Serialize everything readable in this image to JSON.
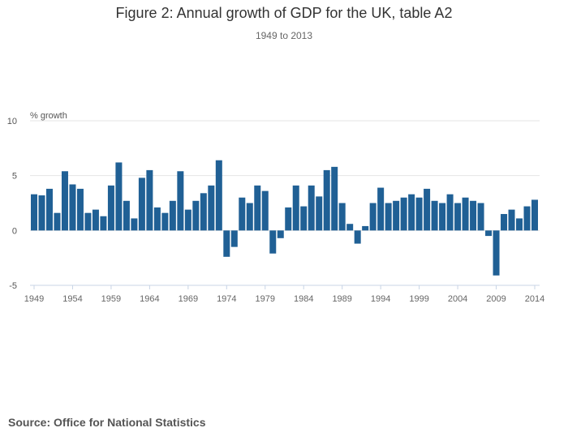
{
  "chart_data": {
    "type": "bar",
    "title": "Figure 2: Annual growth of GDP for the UK, table A2",
    "subtitle": "1949 to 2013",
    "ylabel": "% growth",
    "xlabel": "",
    "ylim": [
      -5,
      10
    ],
    "yticks": [
      10,
      5,
      0,
      -5
    ],
    "xticks": [
      "1949",
      "1954",
      "1959",
      "1964",
      "1969",
      "1974",
      "1979",
      "1984",
      "1989",
      "1994",
      "1999",
      "2004",
      "2009",
      "2014"
    ],
    "grid": true,
    "color": "#206095",
    "categories": [
      "1949",
      "1950",
      "1951",
      "1952",
      "1953",
      "1954",
      "1955",
      "1956",
      "1957",
      "1958",
      "1959",
      "1960",
      "1961",
      "1962",
      "1963",
      "1964",
      "1965",
      "1966",
      "1967",
      "1968",
      "1969",
      "1970",
      "1971",
      "1972",
      "1973",
      "1974",
      "1975",
      "1976",
      "1977",
      "1978",
      "1979",
      "1980",
      "1981",
      "1982",
      "1983",
      "1984",
      "1985",
      "1986",
      "1987",
      "1988",
      "1989",
      "1990",
      "1991",
      "1992",
      "1993",
      "1994",
      "1995",
      "1996",
      "1997",
      "1998",
      "1999",
      "2000",
      "2001",
      "2002",
      "2003",
      "2004",
      "2005",
      "2006",
      "2007",
      "2008",
      "2009",
      "2010",
      "2011",
      "2012",
      "2013",
      "2014"
    ],
    "values": [
      3.3,
      3.2,
      3.8,
      1.6,
      5.4,
      4.2,
      3.8,
      1.6,
      1.9,
      1.3,
      4.1,
      6.2,
      2.7,
      1.1,
      4.8,
      5.5,
      2.1,
      1.6,
      2.7,
      5.4,
      1.9,
      2.7,
      3.4,
      4.1,
      6.4,
      -2.4,
      -1.5,
      3.0,
      2.5,
      4.1,
      3.6,
      -2.1,
      -0.7,
      2.1,
      4.1,
      2.2,
      4.1,
      3.1,
      5.5,
      5.8,
      2.5,
      0.6,
      -1.2,
      0.4,
      2.5,
      3.9,
      2.5,
      2.7,
      3.0,
      3.3,
      3.0,
      3.8,
      2.7,
      2.5,
      3.3,
      2.5,
      3.0,
      2.7,
      2.5,
      -0.5,
      -4.1,
      1.5,
      1.9,
      1.1,
      2.2,
      2.8
    ]
  },
  "source": "Source: Office for National Statistics"
}
